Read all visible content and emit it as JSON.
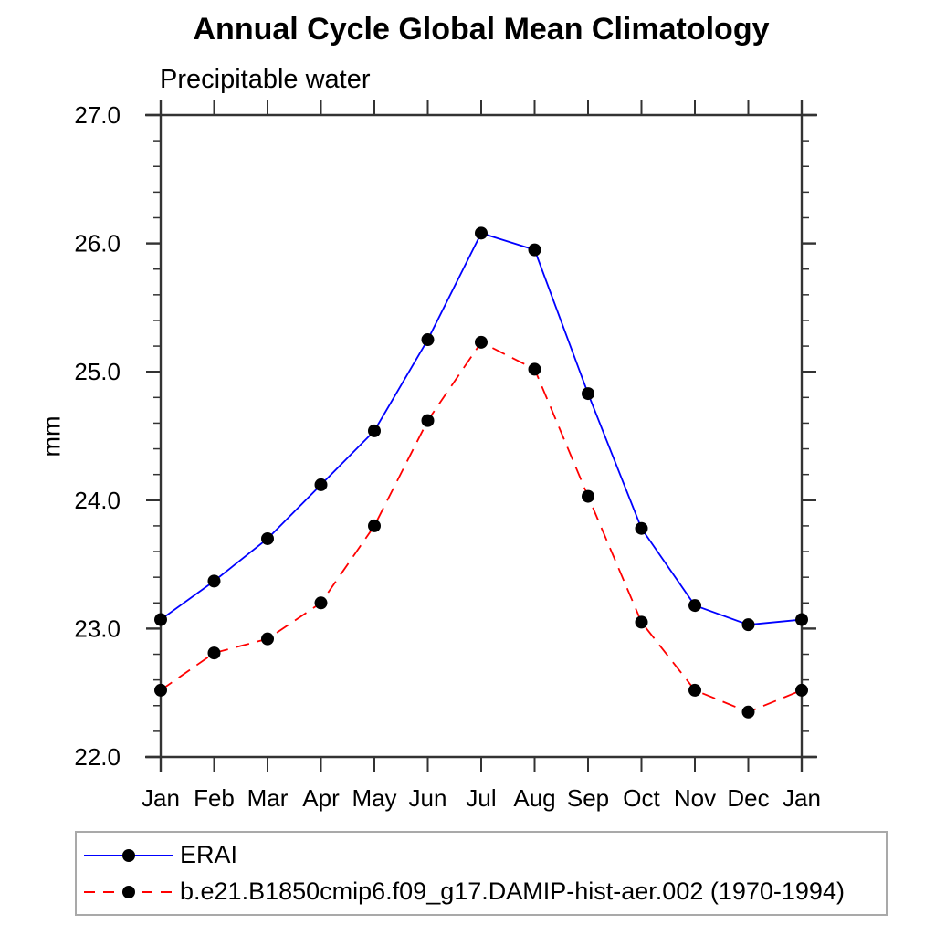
{
  "chart_data": {
    "type": "line",
    "title": "Annual Cycle Global Mean Climatology",
    "subtitle": "Precipitable water",
    "xlabel": "",
    "ylabel": "mm",
    "categories": [
      "Jan",
      "Feb",
      "Mar",
      "Apr",
      "May",
      "Jun",
      "Jul",
      "Aug",
      "Sep",
      "Oct",
      "Nov",
      "Dec",
      "Jan"
    ],
    "series": [
      {
        "name": "ERAI",
        "color": "#0000ff",
        "line_style": "solid",
        "marker": "filled-circle",
        "marker_color": "#000000",
        "values": [
          23.07,
          23.37,
          23.7,
          24.12,
          24.54,
          25.25,
          26.08,
          25.95,
          24.83,
          23.78,
          23.18,
          23.03,
          23.07
        ]
      },
      {
        "name": "b.e21.B1850cmip6.f09_g17.DAMIP-hist-aer.002 (1970-1994)",
        "color": "#ff0000",
        "line_style": "dashed",
        "marker": "filled-circle",
        "marker_color": "#000000",
        "values": [
          22.52,
          22.81,
          22.92,
          23.2,
          23.8,
          24.62,
          25.23,
          25.02,
          24.03,
          23.05,
          22.52,
          22.35,
          22.52
        ]
      }
    ],
    "ylim": [
      22.0,
      27.0
    ],
    "ytick_major_interval": 1.0,
    "ytick_minor_interval": 0.2,
    "ytick_labels": [
      "22.0",
      "23.0",
      "24.0",
      "25.0",
      "26.0",
      "27.0"
    ],
    "grid": false,
    "tick_direction": "out",
    "axes_box": true,
    "legend_position": "bottom-left-box",
    "axis_color": "#333333"
  }
}
